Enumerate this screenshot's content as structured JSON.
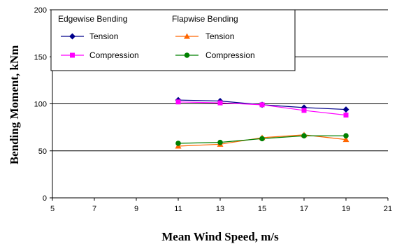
{
  "chart_data": {
    "type": "line",
    "xlabel": "Mean Wind Speed, m/s",
    "ylabel": "Bending Moment, kNm",
    "xlim": [
      5,
      21
    ],
    "ylim": [
      0,
      200
    ],
    "x_ticks": [
      "5",
      "7",
      "9",
      "11",
      "13",
      "15",
      "17",
      "19",
      "21"
    ],
    "y_ticks": [
      "0",
      "50",
      "100",
      "150",
      "200"
    ],
    "grid": "horizontal",
    "legend_placement": "top",
    "legend_groups": [
      "Edgewise Bending",
      "Flapwise Bending"
    ],
    "series": [
      {
        "name": "Tension",
        "group": "Edgewise Bending",
        "color": "#00008B",
        "marker": "diamond",
        "x": [
          11,
          13,
          15,
          17,
          19
        ],
        "y": [
          104,
          103,
          99,
          96,
          94
        ]
      },
      {
        "name": "Compression",
        "group": "Edgewise Bending",
        "color": "#FF00FF",
        "marker": "square",
        "x": [
          11,
          13,
          15,
          17,
          19
        ],
        "y": [
          102,
          101,
          99,
          93,
          88
        ]
      },
      {
        "name": "Tension",
        "group": "Flapwise Bending",
        "color": "#FF6600",
        "marker": "triangle",
        "x": [
          11,
          13,
          15,
          17,
          19
        ],
        "y": [
          55,
          57,
          64,
          67,
          62
        ]
      },
      {
        "name": "Compression",
        "group": "Flapwise Bending",
        "color": "#008000",
        "marker": "circle",
        "x": [
          11,
          13,
          15,
          17,
          19
        ],
        "y": [
          58,
          59,
          63,
          66,
          66
        ]
      }
    ]
  }
}
